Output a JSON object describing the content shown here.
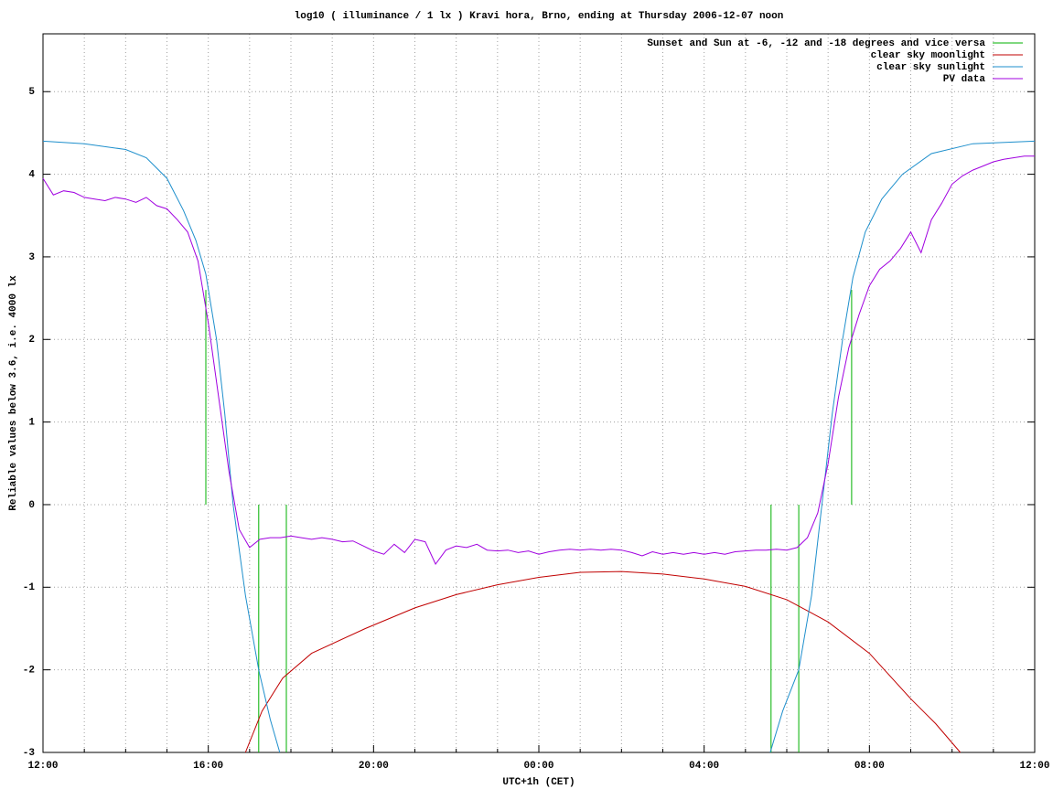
{
  "chart_data": {
    "type": "line",
    "title": "log10 ( illuminance / 1 lx ) Kravi hora, Brno, ending at Thursday 2006-12-07 noon",
    "x_label": "UTC+1h (CET)",
    "y_label": "Reliable values below 3.6, i.e. 4000 lx",
    "xlim": [
      0,
      24
    ],
    "ylim": [
      -3,
      5.7
    ],
    "xticks": [
      {
        "value": 0,
        "label": "12:00"
      },
      {
        "value": 4,
        "label": "16:00"
      },
      {
        "value": 8,
        "label": "20:00"
      },
      {
        "value": 12,
        "label": "00:00"
      },
      {
        "value": 16,
        "label": "04:00"
      },
      {
        "value": 20,
        "label": "08:00"
      },
      {
        "value": 24,
        "label": "12:00"
      }
    ],
    "yticks": [
      -3,
      -2,
      -1,
      0,
      1,
      2,
      3,
      4,
      5
    ],
    "x_minor": 4,
    "grid": true,
    "legend": "top-right",
    "series": [
      {
        "name": "Sunset and Sun at -6, -12 and -18 degrees and vice versa",
        "color": "#00b000",
        "x": [
          3.94,
          3.94,
          null,
          5.22,
          5.22,
          null,
          5.89,
          5.89,
          null,
          17.62,
          17.62,
          null,
          18.29,
          18.29,
          null,
          19.57,
          19.57
        ],
        "values": [
          0,
          2.6,
          null,
          0,
          -3,
          null,
          0,
          -3,
          null,
          0,
          -3,
          null,
          0,
          -3,
          null,
          0,
          2.6
        ]
      },
      {
        "name": "clear sky moonlight",
        "color": "#c00000",
        "x": [
          4.9,
          5.3,
          5.8,
          6.5,
          7.8,
          9,
          10,
          11,
          12,
          13,
          14,
          15,
          16,
          17,
          18,
          19,
          20,
          21,
          21.6,
          22.2
        ],
        "values": [
          -3,
          -2.5,
          -2.1,
          -1.8,
          -1.5,
          -1.25,
          -1.09,
          -0.97,
          -0.88,
          -0.82,
          -0.81,
          -0.84,
          -0.9,
          -0.99,
          -1.15,
          -1.42,
          -1.8,
          -2.35,
          -2.65,
          -3
        ]
      },
      {
        "name": "clear sky sunlight",
        "color": "#1e8fcc",
        "x": [
          0,
          1,
          2,
          2.5,
          3,
          3.4,
          3.7,
          3.94,
          4.2,
          4.4,
          4.6,
          4.9,
          5.22,
          5.5,
          5.73,
          null,
          17.6,
          17.9,
          18.29,
          18.6,
          18.85,
          19.1,
          19.35,
          19.6,
          19.9,
          20.3,
          20.8,
          21.5,
          22.5,
          24
        ],
        "values": [
          4.4,
          4.37,
          4.3,
          4.2,
          3.95,
          3.56,
          3.2,
          2.79,
          2.0,
          1.1,
          0,
          -1.1,
          -2.0,
          -2.6,
          -3,
          null,
          -3,
          -2.5,
          -2.0,
          -1.1,
          0,
          1.1,
          2.0,
          2.75,
          3.3,
          3.7,
          4.0,
          4.25,
          4.37,
          4.4
        ]
      },
      {
        "name": "PV data",
        "color": "#a000e0",
        "x": [
          0,
          0.25,
          0.5,
          0.75,
          1,
          1.25,
          1.5,
          1.75,
          2,
          2.25,
          2.5,
          2.75,
          3,
          3.25,
          3.5,
          3.75,
          4,
          4.25,
          4.5,
          4.75,
          5,
          5.25,
          5.5,
          5.75,
          6,
          6.25,
          6.5,
          6.75,
          7,
          7.25,
          7.5,
          7.75,
          8,
          8.25,
          8.5,
          8.75,
          9,
          9.25,
          9.5,
          9.75,
          10,
          10.25,
          10.5,
          10.75,
          11,
          11.25,
          11.5,
          11.75,
          12,
          12.25,
          12.5,
          12.75,
          13,
          13.25,
          13.5,
          13.75,
          14,
          14.25,
          14.5,
          14.75,
          15,
          15.25,
          15.5,
          15.75,
          16,
          16.25,
          16.5,
          16.75,
          17,
          17.25,
          17.5,
          17.75,
          18,
          18.25,
          18.5,
          18.75,
          19,
          19.25,
          19.5,
          19.75,
          20,
          20.25,
          20.5,
          20.75,
          21,
          21.25,
          21.5,
          21.75,
          22,
          22.25,
          22.5,
          22.75,
          23,
          23.25,
          23.5,
          23.75,
          24
        ],
        "values": [
          3.95,
          3.75,
          3.8,
          3.78,
          3.72,
          3.7,
          3.68,
          3.72,
          3.7,
          3.66,
          3.72,
          3.62,
          3.58,
          3.45,
          3.3,
          2.95,
          2.2,
          1.3,
          0.4,
          -0.3,
          -0.52,
          -0.42,
          -0.4,
          -0.4,
          -0.38,
          -0.4,
          -0.42,
          -0.4,
          -0.42,
          -0.45,
          -0.44,
          -0.5,
          -0.56,
          -0.6,
          -0.48,
          -0.58,
          -0.42,
          -0.45,
          -0.72,
          -0.55,
          -0.5,
          -0.52,
          -0.48,
          -0.55,
          -0.56,
          -0.55,
          -0.58,
          -0.56,
          -0.6,
          -0.57,
          -0.55,
          -0.54,
          -0.55,
          -0.54,
          -0.55,
          -0.54,
          -0.55,
          -0.58,
          -0.62,
          -0.57,
          -0.6,
          -0.58,
          -0.6,
          -0.58,
          -0.6,
          -0.58,
          -0.6,
          -0.57,
          -0.56,
          -0.55,
          -0.55,
          -0.54,
          -0.55,
          -0.52,
          -0.4,
          -0.1,
          0.5,
          1.3,
          1.9,
          2.3,
          2.65,
          2.85,
          2.95,
          3.1,
          3.3,
          3.05,
          3.45,
          3.65,
          3.88,
          3.98,
          4.05,
          4.1,
          4.15,
          4.18,
          4.2,
          4.22,
          4.22
        ]
      }
    ]
  }
}
